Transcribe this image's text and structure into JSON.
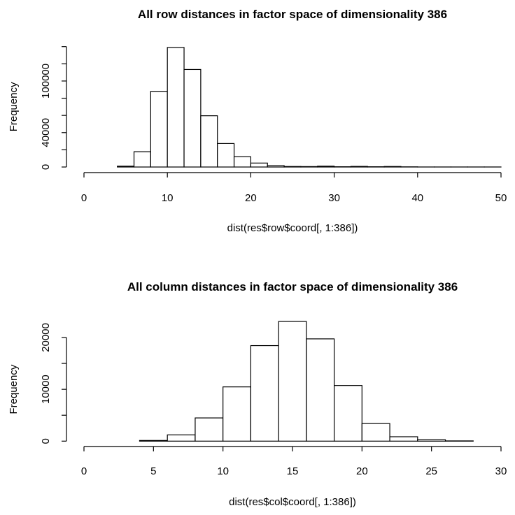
{
  "chart_data": [
    {
      "type": "bar",
      "title": "All row distances in factor space of dimensionality 386",
      "xlabel": "dist(res$row$coord[, 1:386])",
      "ylabel": "Frequency",
      "xlim": [
        0,
        50
      ],
      "ylim": [
        0,
        140000
      ],
      "xticks": [
        0,
        10,
        20,
        30,
        40,
        50
      ],
      "yticks": [
        0,
        20000,
        40000,
        60000,
        80000,
        100000,
        120000,
        140000
      ],
      "ytick_labels": [
        {
          "value": 0,
          "label": "0"
        },
        {
          "value": 40000,
          "label": "40000"
        },
        {
          "value": 100000,
          "label": "100000"
        }
      ],
      "bin_width": 2,
      "bins_start": [
        0,
        2,
        4,
        6,
        8,
        10,
        12,
        14,
        16,
        18,
        20,
        22,
        24,
        26,
        28,
        30,
        32,
        34,
        36,
        38,
        40,
        42,
        44,
        46,
        48
      ],
      "values": [
        0,
        0,
        1000,
        17800,
        88000,
        139000,
        113400,
        59600,
        27300,
        11900,
        4600,
        1600,
        600,
        500,
        1000,
        300,
        700,
        300,
        600,
        200,
        50,
        50,
        50,
        50,
        50
      ]
    },
    {
      "type": "bar",
      "title": "All column distances in factor space of dimensionality 386",
      "xlabel": "dist(res$col$coord[, 1:386])",
      "ylabel": "Frequency",
      "xlim": [
        0,
        30
      ],
      "ylim": [
        0,
        20000
      ],
      "xticks": [
        0,
        5,
        10,
        15,
        20,
        25,
        30
      ],
      "yticks": [
        0,
        5000,
        10000,
        15000,
        20000
      ],
      "ytick_labels": [
        {
          "value": 0,
          "label": "0"
        },
        {
          "value": 10000,
          "label": "10000"
        },
        {
          "value": 20000,
          "label": "20000"
        }
      ],
      "bin_width": 2,
      "bins_start": [
        0,
        2,
        4,
        6,
        8,
        10,
        12,
        14,
        16,
        18,
        20,
        22,
        24,
        26,
        28
      ],
      "values": [
        0,
        0,
        130,
        1210,
        4480,
        10470,
        18440,
        23100,
        19740,
        10740,
        3400,
        850,
        270,
        50,
        0
      ]
    }
  ]
}
